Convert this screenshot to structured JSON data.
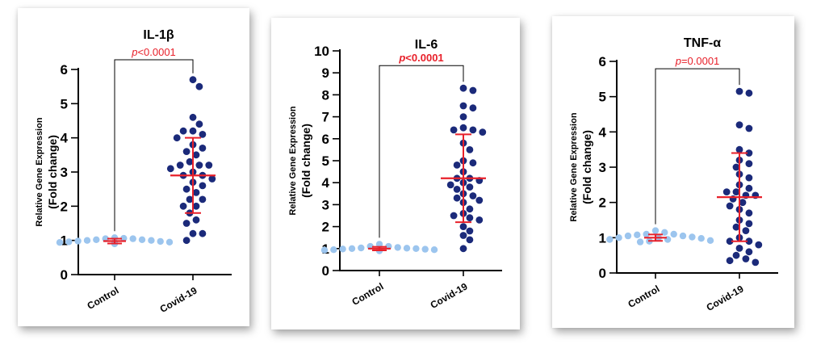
{
  "chart_data": [
    {
      "type": "scatter",
      "title": "IL-1β",
      "ylabel_line1": "Relative Gene Expression",
      "ylabel_line2": "(Fold change)",
      "categories": [
        "Control",
        "Covid-19"
      ],
      "ylim": [
        0,
        6
      ],
      "yticks": [
        0,
        1,
        2,
        3,
        4,
        5,
        6
      ],
      "p_label": {
        "p": "p",
        "rest": "<0.0001"
      },
      "p_bold": false,
      "colors": {
        "control": "#9cc5ee",
        "covid": "#1b2a7a",
        "error": "#e8202a",
        "pvalue": "#e8202a",
        "axis": "#000000"
      },
      "control": {
        "mean": 0.98,
        "sd": 0.07,
        "values": [
          1.08,
          1.06,
          1.05,
          1.02,
          1.0,
          0.98,
          0.96,
          0.94,
          0.92,
          0.9,
          1.05,
          1.0,
          0.95,
          1.02,
          0.97,
          0.93
        ]
      },
      "covid": {
        "mean": 2.9,
        "sd": 1.1,
        "values": [
          5.7,
          5.5,
          4.6,
          4.4,
          4.2,
          4.2,
          4.1,
          4.0,
          3.8,
          3.7,
          3.6,
          3.5,
          3.3,
          3.2,
          3.2,
          3.2,
          3.1,
          3.0,
          2.9,
          2.9,
          2.8,
          2.7,
          2.6,
          2.5,
          2.4,
          2.2,
          2.2,
          2.0,
          2.0,
          1.8,
          1.6,
          1.5,
          1.2,
          1.2,
          1.0
        ]
      }
    },
    {
      "type": "scatter",
      "title": "IL-6",
      "ylabel_line1": "Relative Gene Expression",
      "ylabel_line2": "(Fold change)",
      "categories": [
        "Control",
        "Covid-19"
      ],
      "ylim": [
        0,
        10
      ],
      "yticks": [
        0,
        1,
        2,
        3,
        4,
        5,
        6,
        7,
        8,
        9,
        10
      ],
      "p_label": {
        "p": "p",
        "rest": "<0.0001"
      },
      "p_bold": true,
      "colors": {
        "control": "#9cc5ee",
        "covid": "#1b2a7a",
        "error": "#e8202a",
        "pvalue": "#e8202a",
        "axis": "#000000"
      },
      "control": {
        "mean": 1.0,
        "sd": 0.08,
        "values": [
          1.2,
          1.1,
          1.05,
          1.02,
          1.0,
          0.98,
          0.95,
          0.93,
          0.9,
          1.1,
          1.0,
          0.97,
          1.03,
          0.95,
          0.92
        ]
      },
      "covid": {
        "mean": 4.2,
        "sd": 2.0,
        "values": [
          8.3,
          8.2,
          7.5,
          7.4,
          7.0,
          6.5,
          6.4,
          6.4,
          6.3,
          5.8,
          5.5,
          5.0,
          4.9,
          4.8,
          4.5,
          4.2,
          4.2,
          4.1,
          4.0,
          3.9,
          3.8,
          3.7,
          3.5,
          3.4,
          3.3,
          3.2,
          3.1,
          2.8,
          2.6,
          2.5,
          2.4,
          2.3,
          2.0,
          1.8,
          1.6,
          1.4,
          1.0
        ]
      }
    },
    {
      "type": "scatter",
      "title": "TNF-α",
      "ylabel_line1": "Relative Gene Expression",
      "ylabel_line2": "(Fold change)",
      "categories": [
        "Control",
        "Covid-19"
      ],
      "ylim": [
        0,
        6
      ],
      "yticks": [
        0,
        1,
        2,
        3,
        4,
        5,
        6
      ],
      "p_label": {
        "p": "p",
        "rest": "=0.0001"
      },
      "p_bold": false,
      "colors": {
        "control": "#9cc5ee",
        "covid": "#1b2a7a",
        "error": "#e8202a",
        "pvalue": "#e8202a",
        "axis": "#000000"
      },
      "control": {
        "mean": 1.0,
        "sd": 0.09,
        "values": [
          1.2,
          1.15,
          1.1,
          1.08,
          1.05,
          1.02,
          1.0,
          0.98,
          0.95,
          0.92,
          0.9,
          0.88,
          1.1,
          1.0,
          0.95,
          1.05
        ]
      },
      "covid": {
        "mean": 2.15,
        "sd": 1.25,
        "values": [
          5.15,
          5.1,
          4.2,
          4.1,
          3.5,
          3.4,
          3.2,
          3.1,
          3.0,
          2.8,
          2.7,
          2.5,
          2.4,
          2.3,
          2.3,
          2.2,
          2.2,
          2.1,
          2.0,
          1.9,
          1.8,
          1.7,
          1.5,
          1.4,
          1.3,
          1.2,
          1.0,
          0.9,
          0.9,
          0.8,
          0.7,
          0.6,
          0.5,
          0.4,
          0.35,
          0.3
        ]
      }
    }
  ]
}
